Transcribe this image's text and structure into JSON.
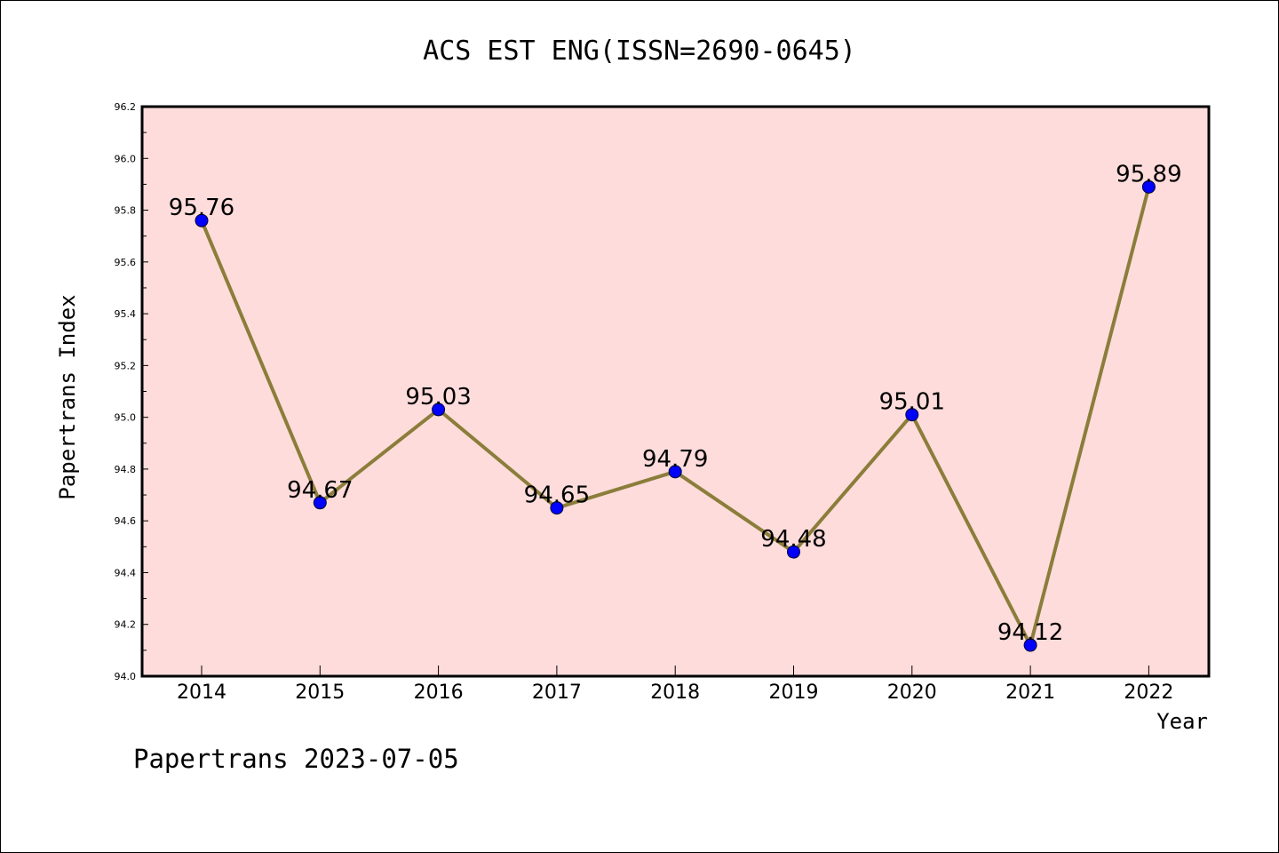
{
  "chart_data": {
    "type": "line",
    "title": "ACS EST ENG(ISSN=2690-0645)",
    "xlabel": "Year",
    "ylabel": "Papertrans Index",
    "categories": [
      "2014",
      "2015",
      "2016",
      "2017",
      "2018",
      "2019",
      "2020",
      "2021",
      "2022"
    ],
    "values": [
      95.76,
      94.67,
      95.03,
      94.65,
      94.79,
      94.48,
      95.01,
      94.12,
      95.89
    ],
    "data_labels": [
      "95.76",
      "94.67",
      "95.03",
      "94.65",
      "94.79",
      "94.48",
      "95.01",
      "94.12",
      "95.89"
    ],
    "ylim": [
      94.0,
      96.2
    ],
    "yticks": [
      "94.0",
      "94.2",
      "94.4",
      "94.6",
      "94.8",
      "95.0",
      "95.2",
      "95.4",
      "95.6",
      "95.8",
      "96.0",
      "96.2"
    ],
    "grid": false,
    "colors": {
      "plot_background": "#fddcdb",
      "line": "#8b7d3a",
      "marker": "#0000ff"
    }
  },
  "footer": {
    "text": "Papertrans 2023-07-05"
  }
}
